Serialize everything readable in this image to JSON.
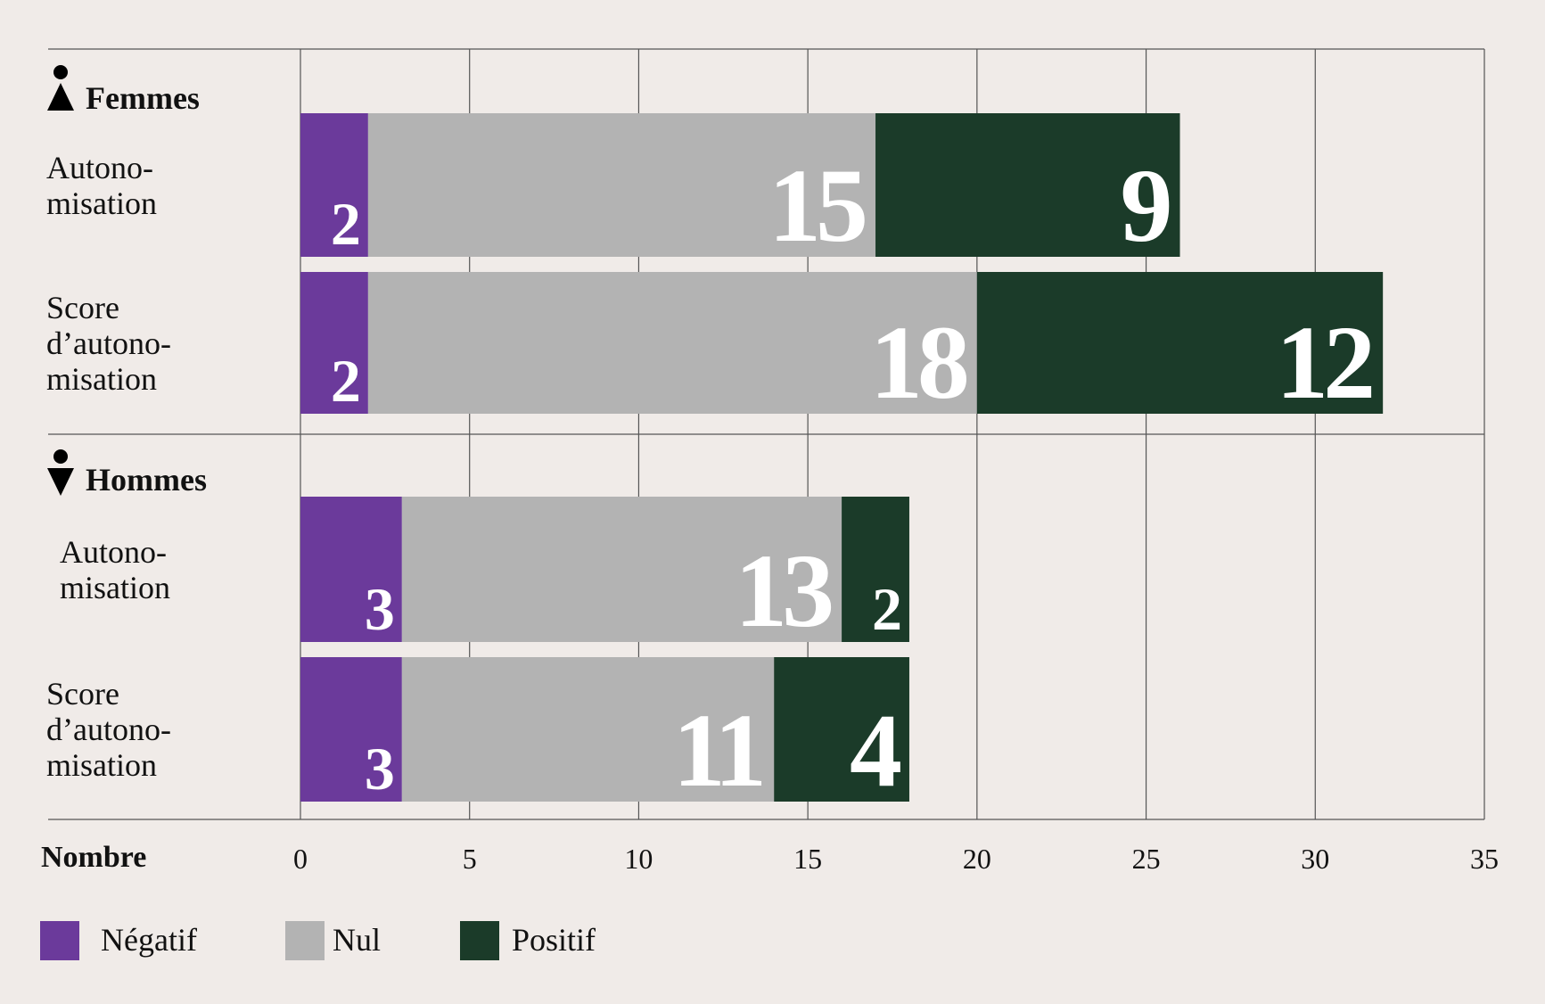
{
  "chart_data": {
    "type": "bar",
    "orientation": "horizontal",
    "stacked": true,
    "group_labels": [
      "Femmes",
      "Hommes"
    ],
    "categories": [
      "Autono-\nmisation",
      "Score\nd’autono-\nmisation",
      "Autono-\nmisation",
      "Score\nd’autono-\nmisation"
    ],
    "series": [
      {
        "name": "Négatif",
        "color": "#6b3a9b",
        "values": [
          2,
          2,
          3,
          3
        ]
      },
      {
        "name": "Nul",
        "color": "#b3b3b3",
        "values": [
          15,
          18,
          13,
          11
        ]
      },
      {
        "name": "Positif",
        "color": "#1b3b29",
        "values": [
          9,
          12,
          2,
          4
        ]
      }
    ],
    "xlabel": "Nombre",
    "xlim": [
      0,
      35
    ],
    "xticks": [
      0,
      5,
      10,
      15,
      20,
      25,
      30,
      35
    ],
    "grid": true
  }
}
